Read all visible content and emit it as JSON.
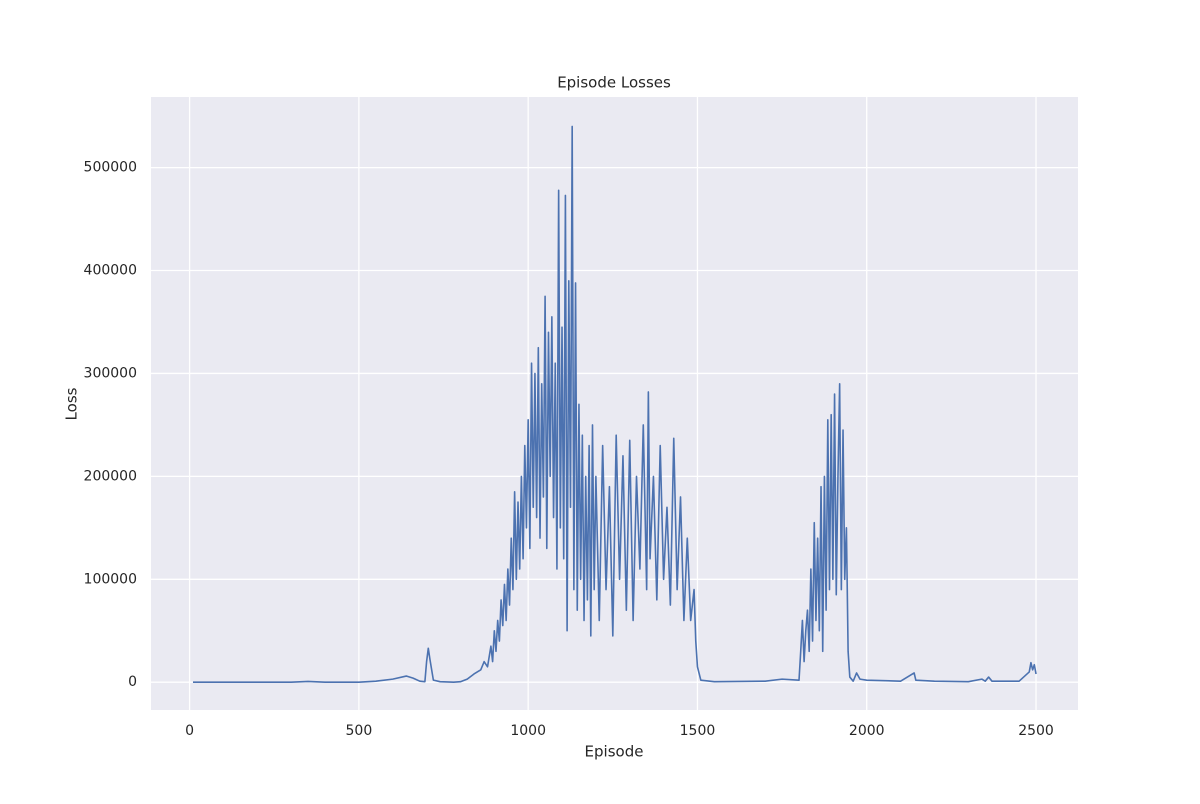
{
  "chart_data": {
    "type": "line",
    "title": "Episode Losses",
    "x_label": "Episode",
    "y_label": "Loss",
    "xlim": [
      -114,
      2624
    ],
    "ylim": [
      -27000,
      568600
    ],
    "xticks": [
      0,
      500,
      1000,
      1500,
      2000,
      2500
    ],
    "yticks": [
      0,
      100000,
      200000,
      300000,
      400000,
      500000
    ],
    "grid": true,
    "background": "#eaeaf2",
    "series": [
      {
        "color": "#4c72b0",
        "x": [
          10,
          100,
          200,
          300,
          350,
          400,
          500,
          550,
          600,
          640,
          660,
          680,
          695,
          700,
          705,
          710,
          720,
          740,
          780,
          800,
          820,
          840,
          860,
          870,
          880,
          890,
          895,
          900,
          905,
          910,
          915,
          920,
          925,
          930,
          935,
          940,
          945,
          950,
          955,
          960,
          965,
          970,
          975,
          980,
          985,
          990,
          995,
          1000,
          1005,
          1010,
          1015,
          1020,
          1025,
          1030,
          1035,
          1040,
          1045,
          1050,
          1055,
          1060,
          1065,
          1070,
          1075,
          1080,
          1085,
          1090,
          1095,
          1100,
          1105,
          1110,
          1115,
          1120,
          1125,
          1130,
          1135,
          1140,
          1145,
          1150,
          1155,
          1160,
          1165,
          1170,
          1175,
          1180,
          1185,
          1190,
          1195,
          1200,
          1210,
          1220,
          1230,
          1240,
          1250,
          1260,
          1270,
          1280,
          1290,
          1300,
          1310,
          1320,
          1330,
          1340,
          1350,
          1355,
          1360,
          1370,
          1380,
          1390,
          1400,
          1410,
          1420,
          1430,
          1440,
          1450,
          1460,
          1470,
          1480,
          1490,
          1495,
          1500,
          1510,
          1550,
          1700,
          1750,
          1800,
          1805,
          1810,
          1815,
          1820,
          1825,
          1830,
          1835,
          1840,
          1845,
          1850,
          1855,
          1860,
          1865,
          1870,
          1875,
          1880,
          1885,
          1890,
          1895,
          1900,
          1905,
          1910,
          1915,
          1920,
          1925,
          1930,
          1935,
          1940,
          1945,
          1950,
          1960,
          1970,
          1980,
          2000,
          2100,
          2140,
          2145,
          2200,
          2300,
          2340,
          2350,
          2360,
          2370,
          2450,
          2480,
          2485,
          2490,
          2495,
          2500
        ],
        "values": [
          0,
          0,
          0,
          0,
          800,
          0,
          0,
          1000,
          3000,
          6000,
          4000,
          1000,
          500,
          20000,
          33000,
          22000,
          2000,
          500,
          0,
          500,
          3000,
          8000,
          12000,
          20000,
          15000,
          35000,
          20000,
          50000,
          30000,
          60000,
          40000,
          80000,
          55000,
          95000,
          60000,
          110000,
          75000,
          140000,
          90000,
          185000,
          100000,
          175000,
          110000,
          200000,
          120000,
          230000,
          150000,
          255000,
          130000,
          310000,
          170000,
          300000,
          160000,
          325000,
          140000,
          290000,
          180000,
          375000,
          130000,
          340000,
          200000,
          355000,
          160000,
          310000,
          110000,
          478000,
          150000,
          345000,
          120000,
          473000,
          50000,
          390000,
          170000,
          540000,
          90000,
          388000,
          70000,
          270000,
          100000,
          240000,
          60000,
          200000,
          80000,
          230000,
          45000,
          250000,
          90000,
          200000,
          60000,
          230000,
          90000,
          190000,
          45000,
          240000,
          100000,
          220000,
          70000,
          235000,
          60000,
          200000,
          110000,
          250000,
          90000,
          282000,
          120000,
          200000,
          80000,
          230000,
          100000,
          170000,
          75000,
          237000,
          90000,
          180000,
          60000,
          140000,
          60000,
          90000,
          40000,
          15000,
          2000,
          500,
          1000,
          3000,
          2000,
          30000,
          60000,
          20000,
          50000,
          70000,
          30000,
          110000,
          40000,
          155000,
          60000,
          140000,
          50000,
          190000,
          30000,
          200000,
          70000,
          255000,
          90000,
          260000,
          100000,
          280000,
          85000,
          200000,
          290000,
          90000,
          245000,
          100000,
          150000,
          30000,
          5000,
          1000,
          9000,
          3000,
          2000,
          1000,
          9000,
          2000,
          1000,
          500,
          3000,
          1000,
          5000,
          1000,
          1000,
          10000,
          19000,
          12000,
          17000,
          8000
        ]
      }
    ]
  }
}
